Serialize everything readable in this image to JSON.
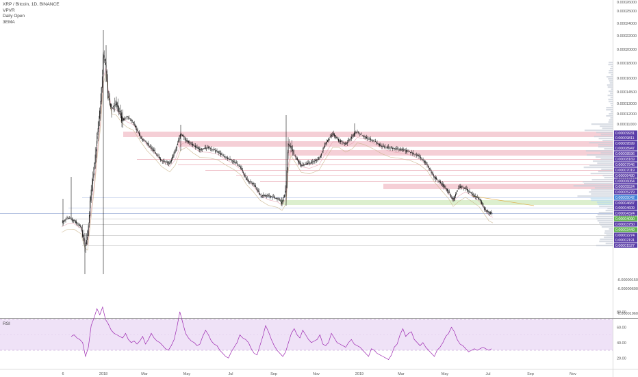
{
  "legend": {
    "symbol": "XRP / Bitcoin, 1D, BINANCE",
    "indicators": [
      "VPVR",
      "Daily Open",
      "3EMA"
    ]
  },
  "rsi_title": "RSI",
  "colors": {
    "candle": "#111111",
    "zone_red": "#f3c7cf",
    "zone_red_line": "#e8a4b0",
    "zone_green": "#d6ecc6",
    "tag_purple": "#5b3ea8",
    "tag_blue": "#3f7fd6",
    "tag_green": "#5fb04f",
    "rsi_line": "#9c27b0",
    "rsi_band": "#efe2f7"
  },
  "chart_data": [
    {
      "type": "candlestick",
      "title": "XRP / Bitcoin, 1D, BINANCE",
      "x_ticks": [
        "6",
        "2018",
        "Mar",
        "May",
        "Jul",
        "Sep",
        "Nov",
        "2019",
        "Mar",
        "May",
        "Jul",
        "Sep",
        "Nov"
      ],
      "y_ticks": [
        "0.00026000",
        "0.00025000",
        "0.00024000",
        "0.00022000",
        "0.00020000",
        "0.00018000",
        "0.00016000",
        "0.00014500",
        "0.00013000",
        "0.00012000",
        "0.00011000",
        "0.00004000",
        "0.00001000",
        "0.00000800",
        "0.00000600",
        "0.00000300",
        "-0.00000150",
        "-0.00000600",
        "-0.00001060"
      ],
      "price_levels": [
        {
          "label": "0.00009931",
          "color": "purple"
        },
        {
          "label": "0.00009811",
          "color": "purple"
        },
        {
          "label": "0.00009599",
          "color": "purple"
        },
        {
          "label": "0.00008947",
          "color": "purple"
        },
        {
          "label": "0.00008596",
          "color": "purple"
        },
        {
          "label": "0.00008169",
          "color": "purple"
        },
        {
          "label": "0.00007946",
          "color": "purple"
        },
        {
          "label": "0.00007019",
          "color": "purple"
        },
        {
          "label": "0.00006480",
          "color": "purple"
        },
        {
          "label": "0.00006064",
          "color": "purple"
        },
        {
          "label": "0.00005524",
          "color": "purple"
        },
        {
          "label": "0.00005279",
          "color": "purple"
        },
        {
          "label": "0.00005042",
          "color": "blue"
        },
        {
          "label": "0.00004687",
          "color": "purple"
        },
        {
          "label": "0.00004609",
          "color": "purple"
        },
        {
          "label": "0.00004324",
          "color": "purple"
        },
        {
          "label": "0.00004090",
          "color": "green"
        },
        {
          "label": "0.00003750",
          "color": "purple"
        },
        {
          "label": "0.00003449",
          "color": "green"
        },
        {
          "label": "0.00002274",
          "color": "purple"
        },
        {
          "label": "0.00002191",
          "color": "purple"
        },
        {
          "label": "0.00001527",
          "color": "purple"
        }
      ],
      "price_path": [
        [
          "Dec 2017",
          3.4e-05
        ],
        [
          "Dec 2017",
          2.8e-05
        ],
        [
          "Jan 2018",
          6.2e-05
        ],
        [
          "Jan 2018",
          0.00018
        ],
        [
          "Jan 2018",
          0.00025
        ],
        [
          "Jan 2018",
          0.00015
        ],
        [
          "Feb 2018",
          0.000115
        ],
        [
          "Feb 2018",
          9.8e-05
        ],
        [
          "Mar 2018",
          9e-05
        ],
        [
          "Apr 2018",
          8.2e-05
        ],
        [
          "May 2018",
          0.0001
        ],
        [
          "May 2018",
          9e-05
        ],
        [
          "Jun 2018",
          8.5e-05
        ],
        [
          "Jul 2018",
          7.2e-05
        ],
        [
          "Aug 2018",
          5.8e-05
        ],
        [
          "Aug 2018",
          5e-05
        ],
        [
          "Sep 2018",
          4.7e-05
        ],
        [
          "Sep 2018",
          8.8e-05
        ],
        [
          "Oct 2018",
          8e-05
        ],
        [
          "Nov 2018",
          0.0001
        ],
        [
          "Dec 2018",
          9.6e-05
        ],
        [
          "Jan 2019",
          9.8e-05
        ],
        [
          "Feb 2019",
          9.3e-05
        ],
        [
          "Mar 2019",
          8.8e-05
        ],
        [
          "Apr 2019",
          7e-05
        ],
        [
          "May 2019",
          5.8e-05
        ],
        [
          "Jun 2019",
          5.5e-05
        ],
        [
          "Jul 2019",
          3.8e-05
        ]
      ]
    },
    {
      "type": "line",
      "title": "RSI",
      "y_ticks": [
        "80.00",
        "60.00",
        "40.00",
        "20.00"
      ],
      "band": [
        30,
        70
      ],
      "values": [
        48,
        50,
        46,
        44,
        40,
        22,
        34,
        62,
        72,
        84,
        76,
        86,
        70,
        64,
        56,
        52,
        50,
        48,
        46,
        52,
        44,
        40,
        42,
        38,
        42,
        48,
        38,
        44,
        52,
        46,
        42,
        40,
        36,
        32,
        30,
        36,
        44,
        60,
        80,
        66,
        52,
        46,
        42,
        40,
        36,
        38,
        48,
        56,
        50,
        42,
        38,
        36,
        30,
        26,
        22,
        20,
        28,
        34,
        40,
        50,
        46,
        44,
        40,
        32,
        26,
        24,
        36,
        48,
        62,
        54,
        44,
        36,
        30,
        26,
        22,
        28,
        40,
        52,
        58,
        50,
        46,
        56,
        50,
        44,
        40,
        42,
        44,
        50,
        38,
        36,
        40,
        52,
        46,
        40,
        38,
        36,
        34,
        40,
        44,
        38,
        36,
        34,
        30,
        26,
        22,
        32,
        30,
        26,
        24,
        22,
        20,
        18,
        24,
        34,
        38,
        50,
        58,
        48,
        52,
        54,
        44,
        40,
        36,
        40,
        34,
        30,
        26,
        22,
        30,
        34,
        40,
        48,
        52,
        60,
        54,
        44,
        38,
        36,
        32,
        28,
        30,
        32,
        30,
        32,
        34,
        32,
        30,
        32
      ]
    }
  ]
}
